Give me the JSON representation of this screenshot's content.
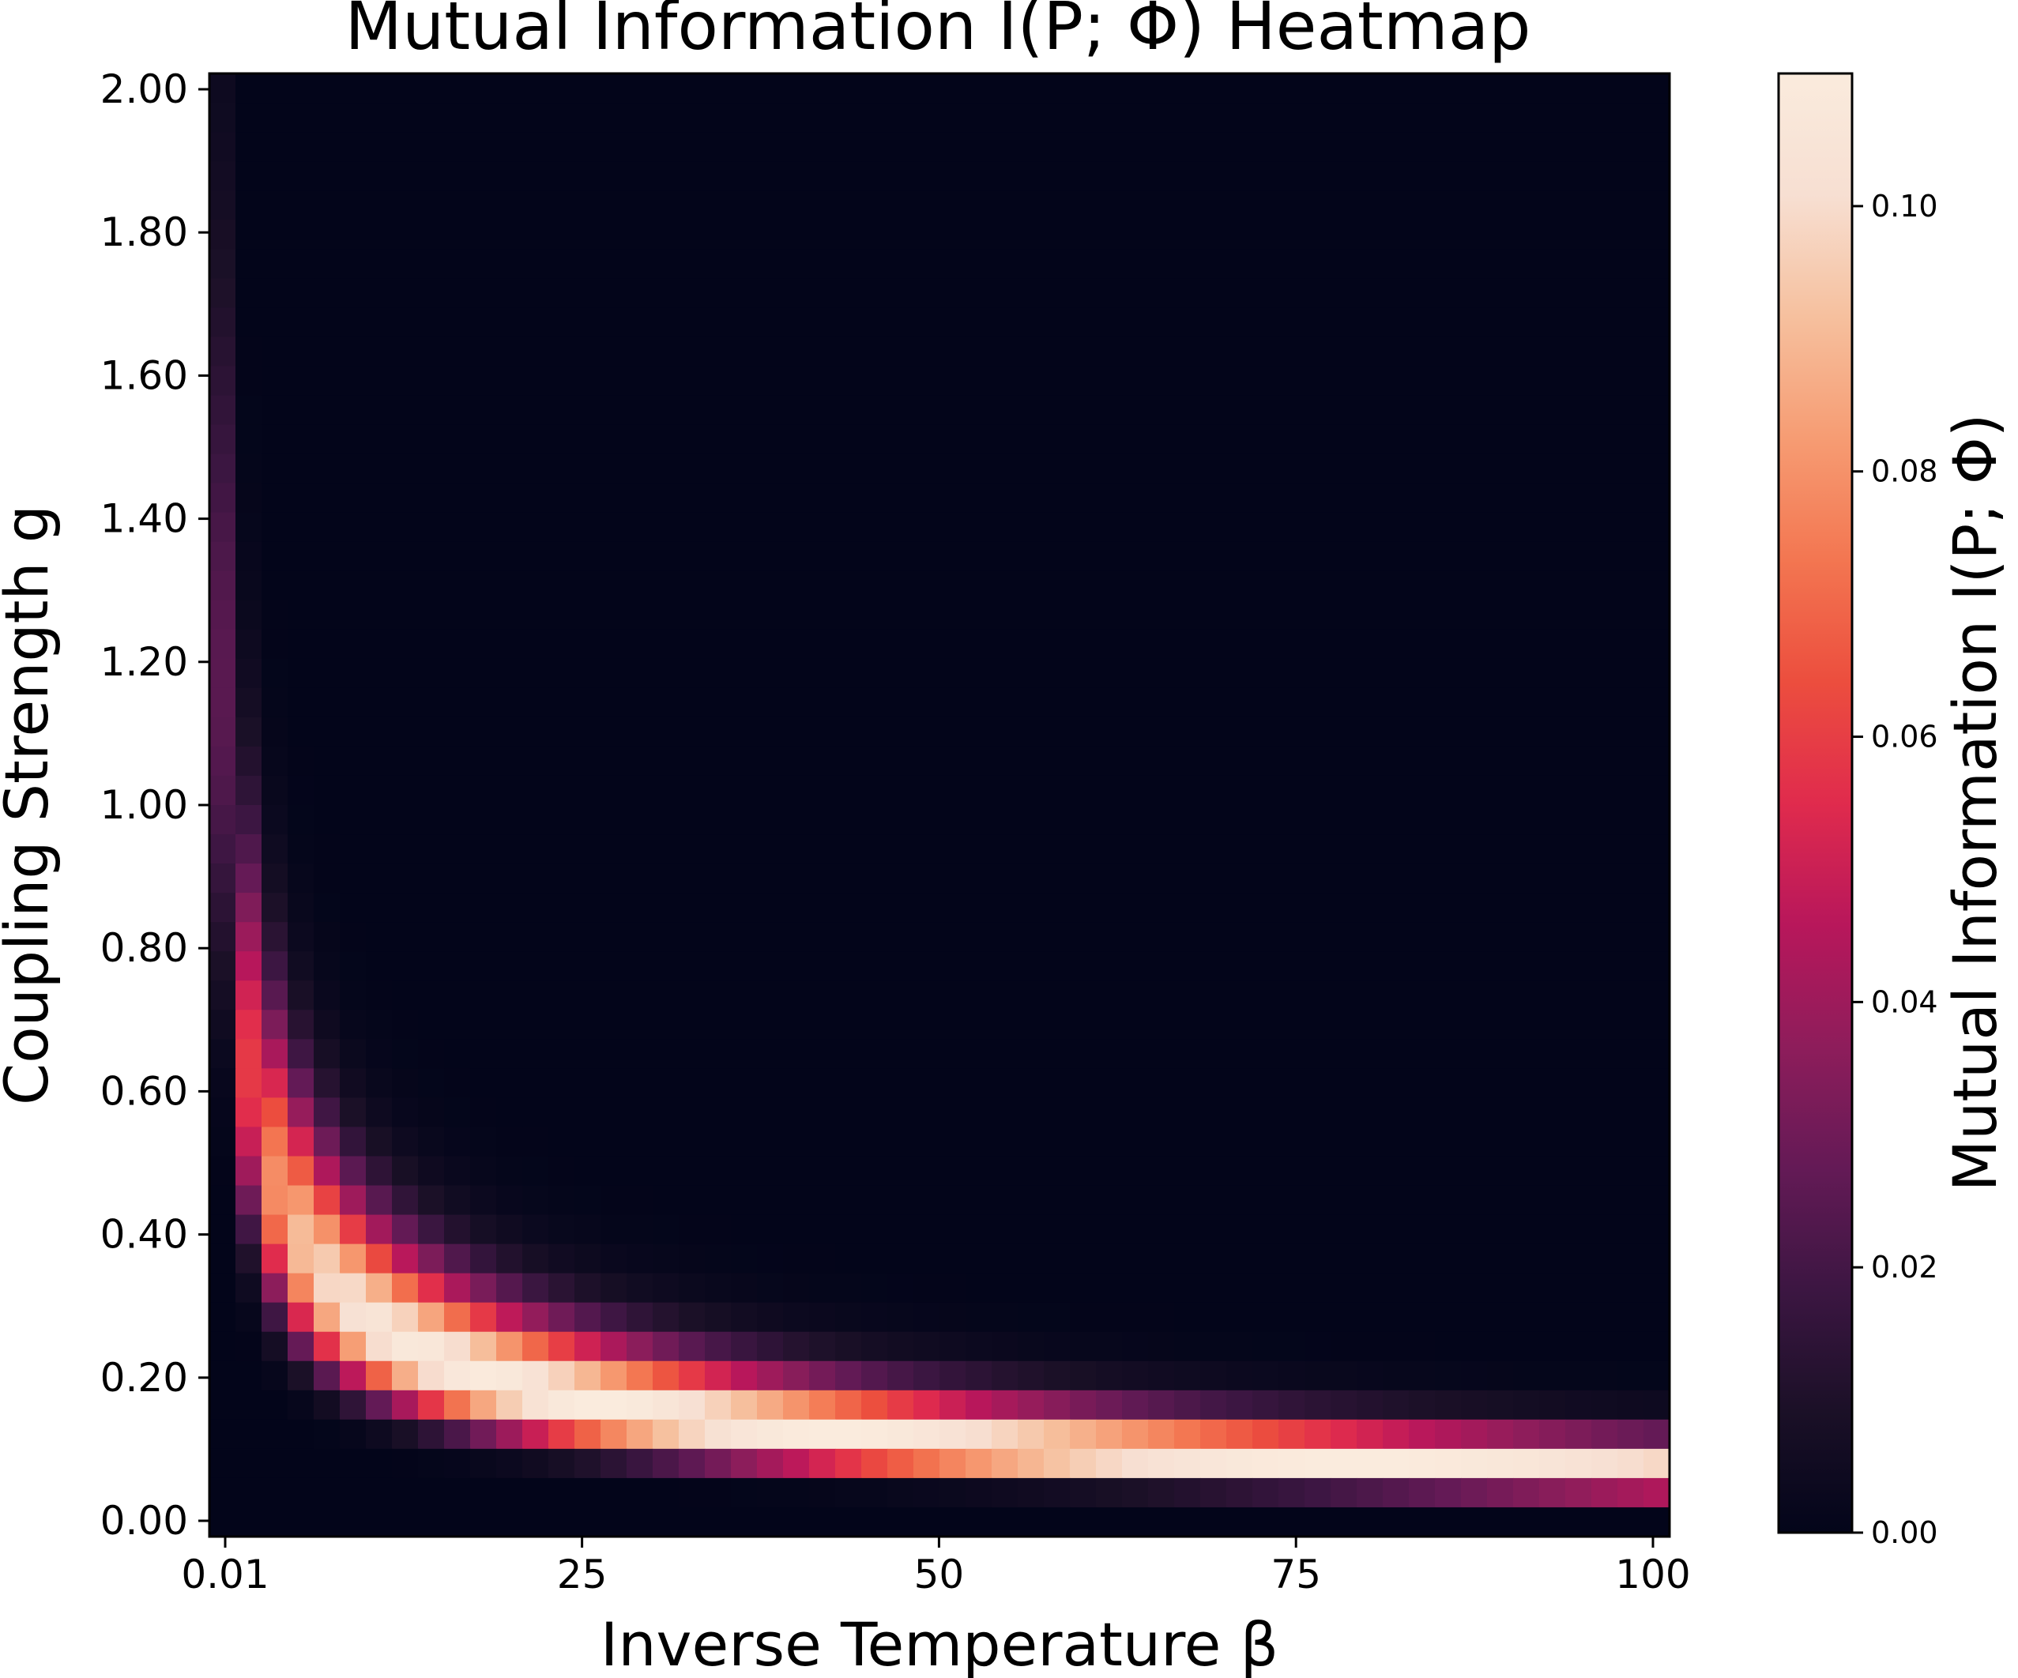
{
  "chart_data": {
    "type": "heatmap",
    "title": "Mutual Information I(P; Φ) Heatmap",
    "xlabel": "Inverse Temperature β",
    "ylabel": "Coupling Strength g",
    "colorbar_label": "Mutual Information I(P; Φ)",
    "colormap": "rocket",
    "x_range": [
      0.01,
      100
    ],
    "y_range": [
      0,
      2
    ],
    "x_cells": 56,
    "y_cells": 50,
    "value_range": [
      0,
      0.11
    ],
    "x_ticks": [
      {
        "value": 0.01,
        "label": "0.01"
      },
      {
        "value": 25,
        "label": "25"
      },
      {
        "value": 50,
        "label": "50"
      },
      {
        "value": 75,
        "label": "75"
      },
      {
        "value": 100,
        "label": "100"
      }
    ],
    "y_ticks": [
      {
        "value": 0.0,
        "label": "0.00"
      },
      {
        "value": 0.2,
        "label": "0.20"
      },
      {
        "value": 0.4,
        "label": "0.40"
      },
      {
        "value": 0.6,
        "label": "0.60"
      },
      {
        "value": 0.8,
        "label": "0.80"
      },
      {
        "value": 1.0,
        "label": "1.00"
      },
      {
        "value": 1.2,
        "label": "1.20"
      },
      {
        "value": 1.4,
        "label": "1.40"
      },
      {
        "value": 1.6,
        "label": "1.60"
      },
      {
        "value": 1.8,
        "label": "1.80"
      },
      {
        "value": 2.0,
        "label": "2.00"
      }
    ],
    "colorbar_ticks": [
      {
        "value": 0.0,
        "label": "0.00"
      },
      {
        "value": 0.02,
        "label": "0.02"
      },
      {
        "value": 0.04,
        "label": "0.04"
      },
      {
        "value": 0.06,
        "label": "0.06"
      },
      {
        "value": 0.08,
        "label": "0.08"
      },
      {
        "value": 0.1,
        "label": "0.10"
      }
    ],
    "ridge": {
      "peak_value": 0.11,
      "approx_relation": "g ≈ 1.1 · β^(-0.55)"
    }
  },
  "colors": {
    "rocket": [
      "#03051a",
      "#1b1027",
      "#3c1642",
      "#641a56",
      "#8e1d5b",
      "#b8175b",
      "#e02b4d",
      "#ec4e3e",
      "#f37651",
      "#f69c73",
      "#f6c09e",
      "#f7dfd2",
      "#faebdd"
    ]
  }
}
